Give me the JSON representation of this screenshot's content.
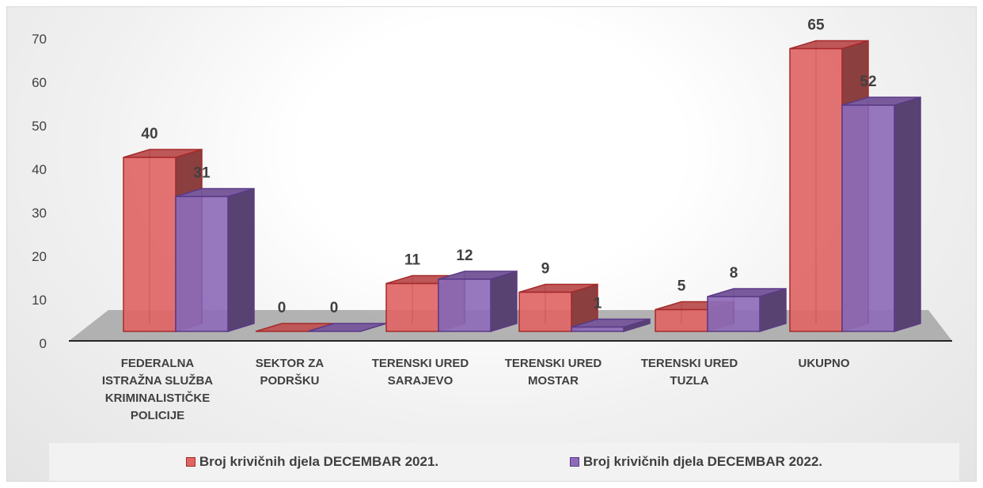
{
  "chart_data": {
    "type": "bar",
    "title": "",
    "xlabel": "",
    "ylabel": "",
    "ylim": [
      0,
      70
    ],
    "yticks": [
      0,
      10,
      20,
      30,
      40,
      50,
      60,
      70
    ],
    "grid": false,
    "legend_position": "bottom",
    "categories": [
      "FEDERALNA ISTRAŽNA SLUŽBA KRIMINALISTIČKE POLICIJE",
      "SEKTOR ZA PODRŠKU",
      "TERENSKI URED SARAJEVO",
      "TERENSKI URED MOSTAR",
      "TERENSKI URED TUZLA",
      "UKUPNO"
    ],
    "category_lines": [
      [
        "FEDERALNA",
        "ISTRAŽNA SLUŽBA",
        "KRIMINALISTIČKE",
        "POLICIJE"
      ],
      [
        "SEKTOR ZA",
        "PODRŠKU"
      ],
      [
        "TERENSKI URED",
        "SARAJEVO"
      ],
      [
        "TERENSKI URED",
        "MOSTAR"
      ],
      [
        "TERENSKI URED",
        "TUZLA"
      ],
      [
        "UKUPNO"
      ]
    ],
    "series": [
      {
        "name": "Broj krivičnih djela DECEMBAR 2021.",
        "values": [
          40,
          0,
          11,
          9,
          5,
          65
        ],
        "color": "#e06666",
        "edge_color": "#a52a2a"
      },
      {
        "name": "Broj krivičnih djela DECEMBAR 2022.",
        "values": [
          31,
          0,
          12,
          1,
          8,
          52
        ],
        "color": "#8e6bb8",
        "edge_color": "#5b3a86"
      }
    ],
    "floor_color": "#a6a6a6"
  }
}
